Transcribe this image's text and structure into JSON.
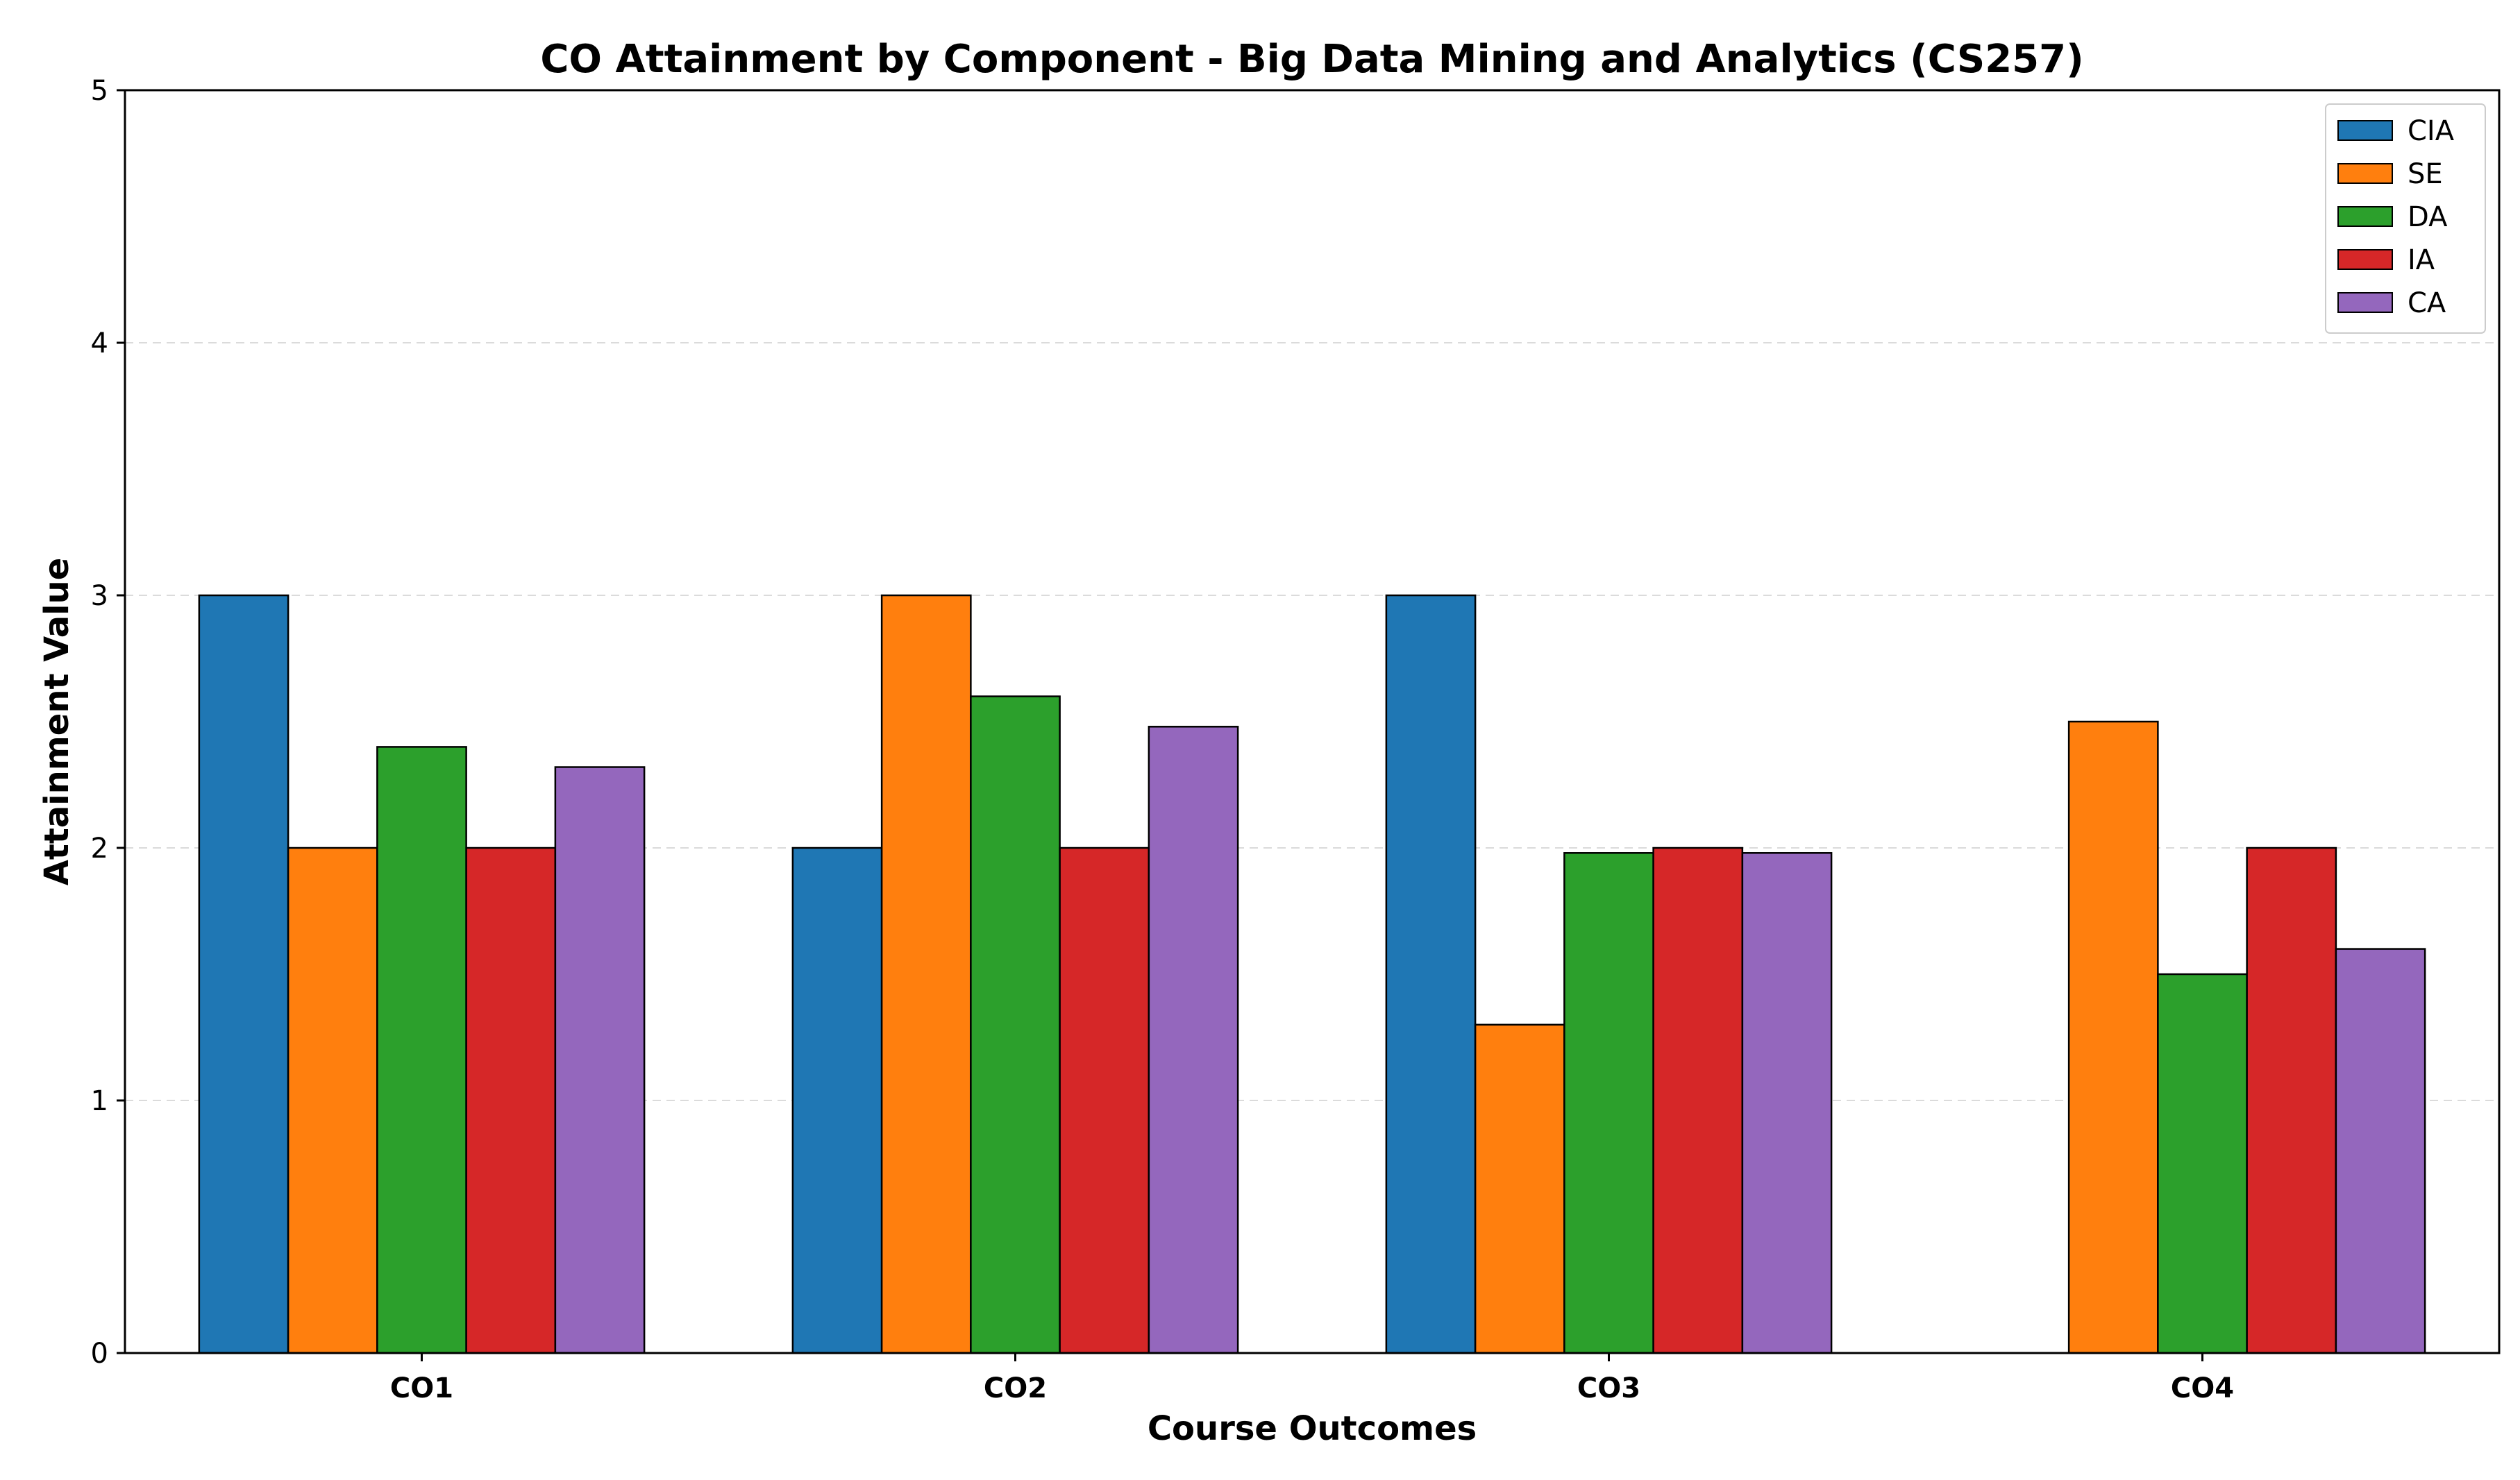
{
  "chart_data": {
    "type": "bar",
    "title": "CO Attainment by Component - Big Data Mining and Analytics (CS257)",
    "xlabel": "Course Outcomes",
    "ylabel": "Attainment Value",
    "categories": [
      "CO1",
      "CO2",
      "CO3",
      "CO4"
    ],
    "ylim": [
      0,
      5
    ],
    "yticks": [
      "0",
      "1",
      "2",
      "3",
      "4",
      "5"
    ],
    "grid": "horizontal dashed",
    "legend_position": "top-right",
    "series": [
      {
        "name": "CIA",
        "color": "#1f77b4",
        "values": [
          3.0,
          2.0,
          3.0,
          0.0
        ]
      },
      {
        "name": "SE",
        "color": "#ff7f0e",
        "values": [
          2.0,
          3.0,
          1.3,
          2.5
        ]
      },
      {
        "name": "DA",
        "color": "#2ca02c",
        "values": [
          2.4,
          2.6,
          1.98,
          1.5
        ]
      },
      {
        "name": "IA",
        "color": "#d62728",
        "values": [
          2.0,
          2.0,
          2.0,
          2.0
        ]
      },
      {
        "name": "CA",
        "color": "#9467bd",
        "values": [
          2.32,
          2.48,
          1.98,
          1.6
        ]
      }
    ]
  }
}
